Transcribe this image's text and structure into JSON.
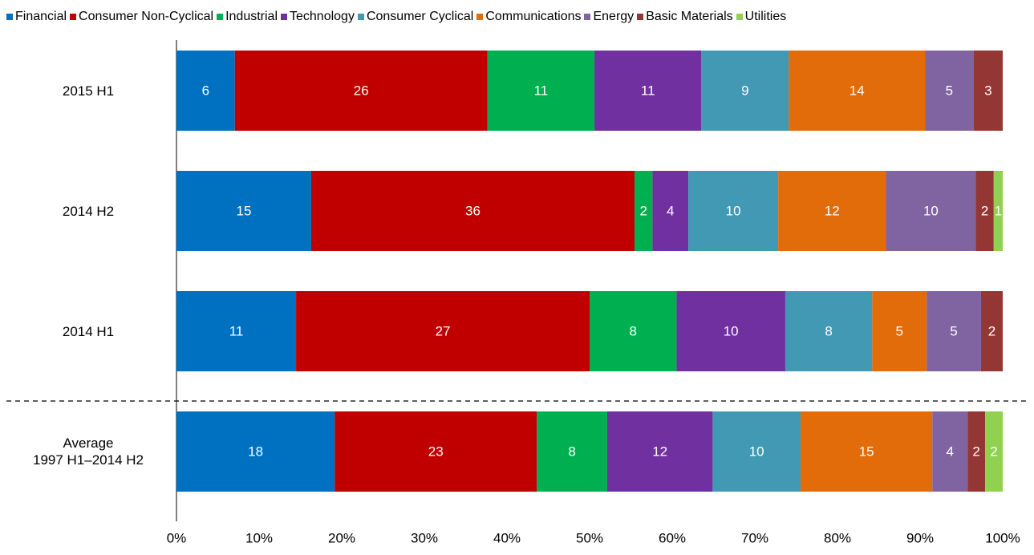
{
  "chart_data": {
    "type": "bar",
    "orientation": "horizontal",
    "stacking": "percent",
    "categories": [
      "2015 H1",
      "2014 H2",
      "2014 H1",
      "Average\n1997 H1–2014 H2"
    ],
    "series": [
      {
        "name": "Financial",
        "color": "#0070c0",
        "values": [
          6,
          15,
          11,
          18
        ]
      },
      {
        "name": "Consumer Non-Cyclical",
        "color": "#c00000",
        "values": [
          26,
          36,
          27,
          23
        ]
      },
      {
        "name": "Industrial",
        "color": "#00b050",
        "values": [
          11,
          2,
          8,
          8
        ]
      },
      {
        "name": "Technology",
        "color": "#7030a0",
        "values": [
          11,
          4,
          10,
          12
        ]
      },
      {
        "name": "Consumer Cyclical",
        "color": "#4299b4",
        "values": [
          9,
          10,
          8,
          10
        ]
      },
      {
        "name": "Communications",
        "color": "#e36c0a",
        "values": [
          14,
          12,
          5,
          15
        ]
      },
      {
        "name": "Energy",
        "color": "#8064a2",
        "values": [
          5,
          10,
          5,
          4
        ]
      },
      {
        "name": "Basic Materials",
        "color": "#943634",
        "values": [
          3,
          2,
          2,
          2
        ]
      },
      {
        "name": "Utilities",
        "color": "#92d050",
        "values": [
          null,
          1,
          null,
          2
        ]
      }
    ],
    "xlim": [
      0,
      100
    ],
    "xticks": [
      {
        "value": 0,
        "label": "0%"
      },
      {
        "value": 10,
        "label": "10%"
      },
      {
        "value": 20,
        "label": "20%"
      },
      {
        "value": 30,
        "label": "30%"
      },
      {
        "value": 40,
        "label": "40%"
      },
      {
        "value": 50,
        "label": "50%"
      },
      {
        "value": 60,
        "label": "60%"
      },
      {
        "value": 70,
        "label": "70%"
      },
      {
        "value": 80,
        "label": "80%"
      },
      {
        "value": 90,
        "label": "90%"
      },
      {
        "value": 100,
        "label": "100%"
      }
    ],
    "legend": "top",
    "grid": false
  }
}
